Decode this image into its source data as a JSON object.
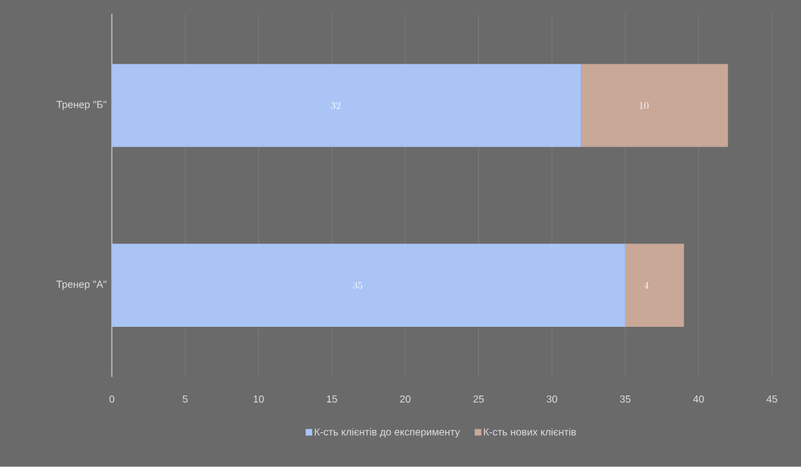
{
  "chart_data": {
    "type": "bar",
    "orientation": "horizontal",
    "stacked": true,
    "categories": [
      "Тренер \"Б\"",
      "Тренер \"А\""
    ],
    "series": [
      {
        "name": "К-сть клієнтів до експерименту",
        "color": "#a9c4f5",
        "values": [
          32,
          35
        ]
      },
      {
        "name": "К-сть нових клієнтів",
        "color": "#c9a898",
        "values": [
          10,
          4
        ]
      }
    ],
    "xlim": [
      0,
      45
    ],
    "xticks": [
      0,
      5,
      10,
      15,
      20,
      25,
      30,
      35,
      40,
      45
    ],
    "grid": "x",
    "legend": "bottom",
    "data_labels": true
  }
}
